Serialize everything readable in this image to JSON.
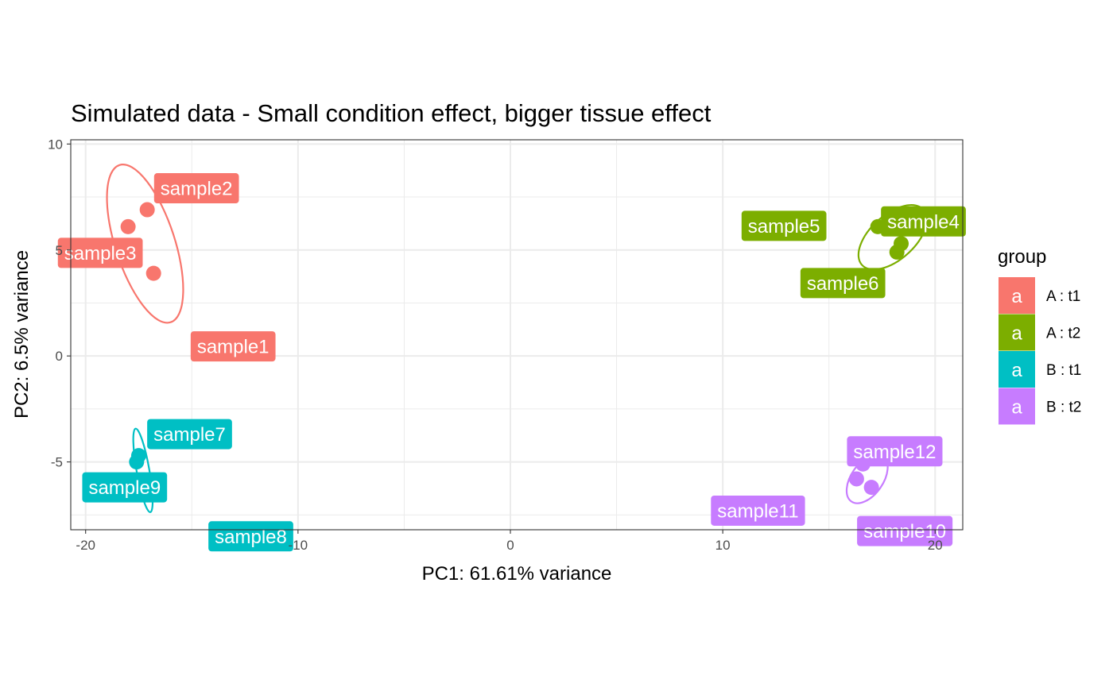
{
  "chart_data": {
    "type": "scatter",
    "title": "Simulated data - Small condition effect, bigger tissue effect",
    "xlabel": "PC1: 61.61% variance",
    "ylabel": "PC2: 6.5% variance",
    "xlim": [
      -20.7,
      21.3
    ],
    "ylim": [
      -8.2,
      10.2
    ],
    "x_ticks": [
      -20,
      -10,
      0,
      10,
      20
    ],
    "y_ticks": [
      -5,
      0,
      5,
      10
    ],
    "x_tick_labels": [
      "-20",
      "-10",
      "0",
      "10",
      "20"
    ],
    "y_tick_labels": [
      "-5",
      "0",
      "5",
      "10"
    ],
    "grid": true,
    "legend": {
      "title": "group",
      "position": "right",
      "key_glyph": "a",
      "entries": [
        "A : t1",
        "A : t2",
        "B : t1",
        "B : t2"
      ]
    },
    "series": [
      {
        "name": "A : t1",
        "color": "#F8766D",
        "ellipse": {
          "cx": -17.2,
          "cy": 5.3,
          "rx": 1.4,
          "ry": 3.9,
          "angle_deg": -18
        },
        "points": [
          {
            "label": "sample1",
            "x": -16.8,
            "y": 3.9
          },
          {
            "label": "sample2",
            "x": -17.1,
            "y": 6.9
          },
          {
            "label": "sample3",
            "x": -18.0,
            "y": 6.1
          }
        ]
      },
      {
        "name": "A : t2",
        "color": "#7CAE00",
        "ellipse": {
          "cx": 18.0,
          "cy": 5.6,
          "rx": 1.05,
          "ry": 1.95,
          "angle_deg": 48
        },
        "points": [
          {
            "label": "sample4",
            "x": 18.4,
            "y": 5.3
          },
          {
            "label": "sample5",
            "x": 17.3,
            "y": 6.1
          },
          {
            "label": "sample6",
            "x": 18.2,
            "y": 4.9
          }
        ]
      },
      {
        "name": "B : t1",
        "color": "#00BFC4",
        "ellipse": {
          "cx": -17.3,
          "cy": -5.4,
          "rx": 0.3,
          "ry": 2.0,
          "angle_deg": -10
        },
        "points": [
          {
            "label": "sample7",
            "x": -17.5,
            "y": -4.7
          },
          {
            "label": "sample8",
            "x": -17.2,
            "y": -6.0
          },
          {
            "label": "sample9",
            "x": -17.6,
            "y": -5.0
          }
        ]
      },
      {
        "name": "B : t2",
        "color": "#C77CFF",
        "ellipse": {
          "cx": 16.8,
          "cy": -5.8,
          "rx": 0.75,
          "ry": 1.3,
          "angle_deg": 35
        },
        "points": [
          {
            "label": "sample10",
            "x": 17.0,
            "y": -6.2
          },
          {
            "label": "sample11",
            "x": 16.3,
            "y": -5.8
          },
          {
            "label": "sample12",
            "x": 16.6,
            "y": -5.1
          }
        ]
      }
    ]
  }
}
